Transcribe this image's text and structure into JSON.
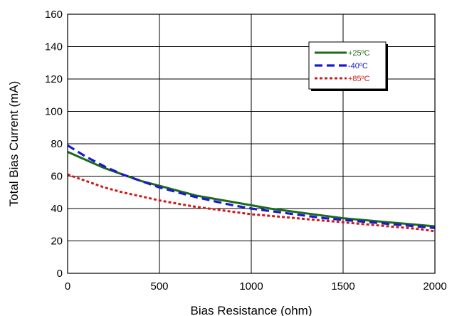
{
  "chart_data": {
    "type": "line",
    "xlabel": "Bias Resistance (ohm)",
    "ylabel": "Total Bias Current (mA)",
    "xlim": [
      0,
      2000
    ],
    "ylim": [
      0,
      160
    ],
    "x_ticks": [
      "0",
      "500",
      "1000",
      "1500",
      "2000"
    ],
    "y_ticks": [
      "0",
      "20",
      "40",
      "60",
      "80",
      "100",
      "120",
      "140",
      "160"
    ],
    "grid": true,
    "legend_position": "top-right",
    "series": [
      {
        "name": "+25ºC",
        "color": "#1a6b1a",
        "style": "solid",
        "x": [
          0,
          100,
          200,
          300,
          400,
          500,
          600,
          700,
          800,
          900,
          1000,
          1100,
          1200,
          1300,
          1400,
          1500,
          1600,
          1700,
          1800,
          1900,
          2000
        ],
        "y": [
          75,
          70,
          65,
          61,
          57,
          54,
          51,
          48,
          46,
          44,
          42,
          40,
          38.5,
          37,
          35.5,
          34,
          33,
          32,
          31,
          30,
          29
        ]
      },
      {
        "name": "-40ºC",
        "color": "#1a1acc",
        "style": "dashed",
        "x": [
          0,
          100,
          200,
          300,
          400,
          500,
          600,
          700,
          800,
          900,
          1000,
          1100,
          1200,
          1300,
          1400,
          1500,
          1600,
          1700,
          1800,
          1900,
          2000
        ],
        "y": [
          79,
          72,
          66,
          61,
          57,
          53,
          50,
          47,
          44.5,
          42,
          40,
          38.5,
          37,
          35.5,
          34,
          33,
          32,
          31,
          30,
          29,
          28
        ]
      },
      {
        "name": "+85ºC",
        "color": "#cc1a1a",
        "style": "dotted",
        "x": [
          0,
          100,
          200,
          300,
          400,
          500,
          600,
          700,
          800,
          900,
          1000,
          1100,
          1200,
          1300,
          1400,
          1500,
          1600,
          1700,
          1800,
          1900,
          2000
        ],
        "y": [
          61,
          57,
          53,
          50,
          47.5,
          45,
          43,
          41,
          39.5,
          38,
          36.5,
          35.5,
          34.5,
          33.5,
          32.5,
          31.5,
          30.5,
          29.5,
          28.5,
          27.5,
          26
        ]
      }
    ]
  }
}
